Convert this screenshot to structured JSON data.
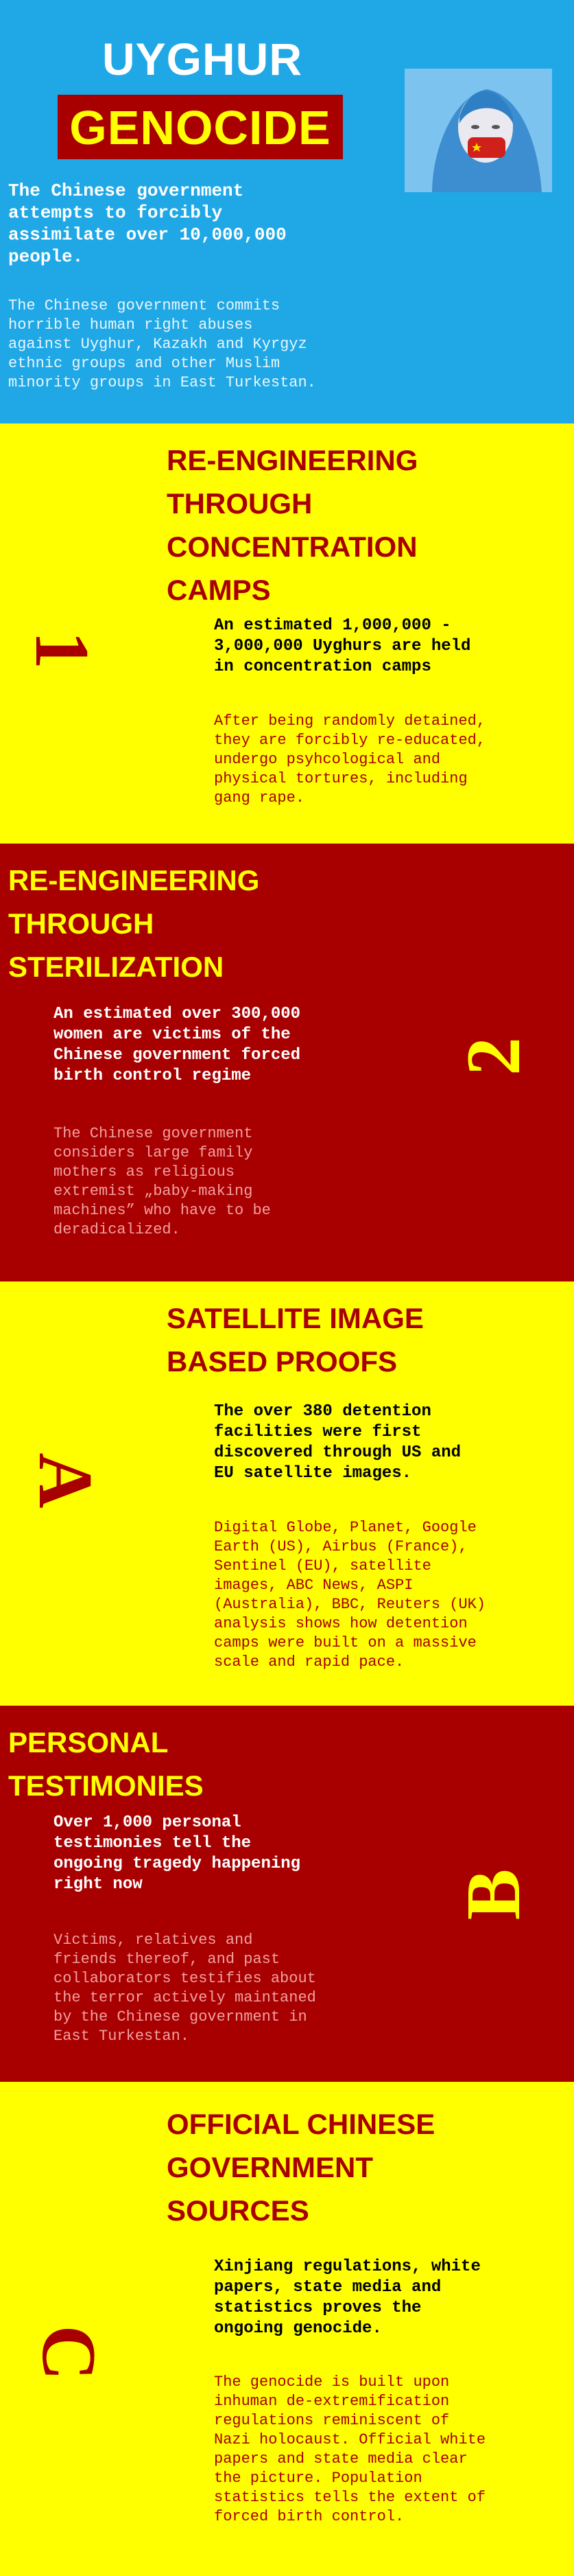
{
  "header": {
    "title_line1": "UYGHUR",
    "title_line2": "GENOCIDE",
    "lead": "The Chinese government\nattempts to forcibly\nassimilate over 10,000,000\npeople.",
    "body": "The Chinese government commits\nhorrible human right abuses\nagainst Uyghur, Kazakh and Kyrgyz\nethnic groups and other Muslim\nminority groups in East Turkestan."
  },
  "sections": [
    {
      "numeral": "1",
      "title": "RE-ENGINEERING\nTHROUGH\nCONCENTRATION\nCAMPS",
      "lead": "An estimated 1,000,000  -\n3,000,000 Uyghurs are held\nin concentration camps",
      "body": "After being randomly detained,\nthey are forcibly re-educated,\nundergo psyhcological and\nphysical tortures, including\ngang rape."
    },
    {
      "numeral": "2",
      "title": "RE-ENGINEERING\nTHROUGH\nSTERILIZATION",
      "lead": "An estimated over 300,000\nwomen are victims of the\nChinese government forced\nbirth control regime",
      "body": "The Chinese government\nconsiders large family\nmothers as religious\nextremist „baby-making\nmachines” who have to be\nderadicalized."
    },
    {
      "numeral": "A",
      "title": "SATELLITE IMAGE\nBASED PROOFS",
      "lead": "The over 380 detention\nfacilities were first\ndiscovered through US and\nEU satellite images.",
      "body": "Digital Globe, Planet, Google\nEarth (US), Airbus (France),\nSentinel (EU), satellite\nimages, ABC News, ASPI\n(Australia), BBC, Reuters (UK)\nanalysis shows how detention\ncamps were built on a massive\nscale and rapid pace."
    },
    {
      "numeral": "B",
      "title": "PERSONAL\nTESTIMONIES",
      "lead": "Over 1,000 personal\ntestimonies tell the\nongoing tragedy happening\nright now",
      "body": "Victims, relatives and\nfriends thereof, and past\ncollaborators testifies about\nthe terror actively maintaned\nby the Chinese government in\nEast Turkestan."
    },
    {
      "numeral": "C",
      "title": "OFFICIAL CHINESE\nGOVERNMENT\nSOURCES",
      "lead": "Xinjiang regulations, white\npapers, state media and\nstatistics proves the\nongoing genocide.",
      "body": "The genocide is built upon\ninhuman de-extremification\nregulations reminiscent of\nNazi holocaust. Official white\npapers and state media clear\nthe picture. Population\nstatistics tells the extent of\nforced birth control."
    }
  ],
  "colors": {
    "blue": "#20a8e6",
    "yellow": "#ffff00",
    "dark_red": "#a80000"
  }
}
